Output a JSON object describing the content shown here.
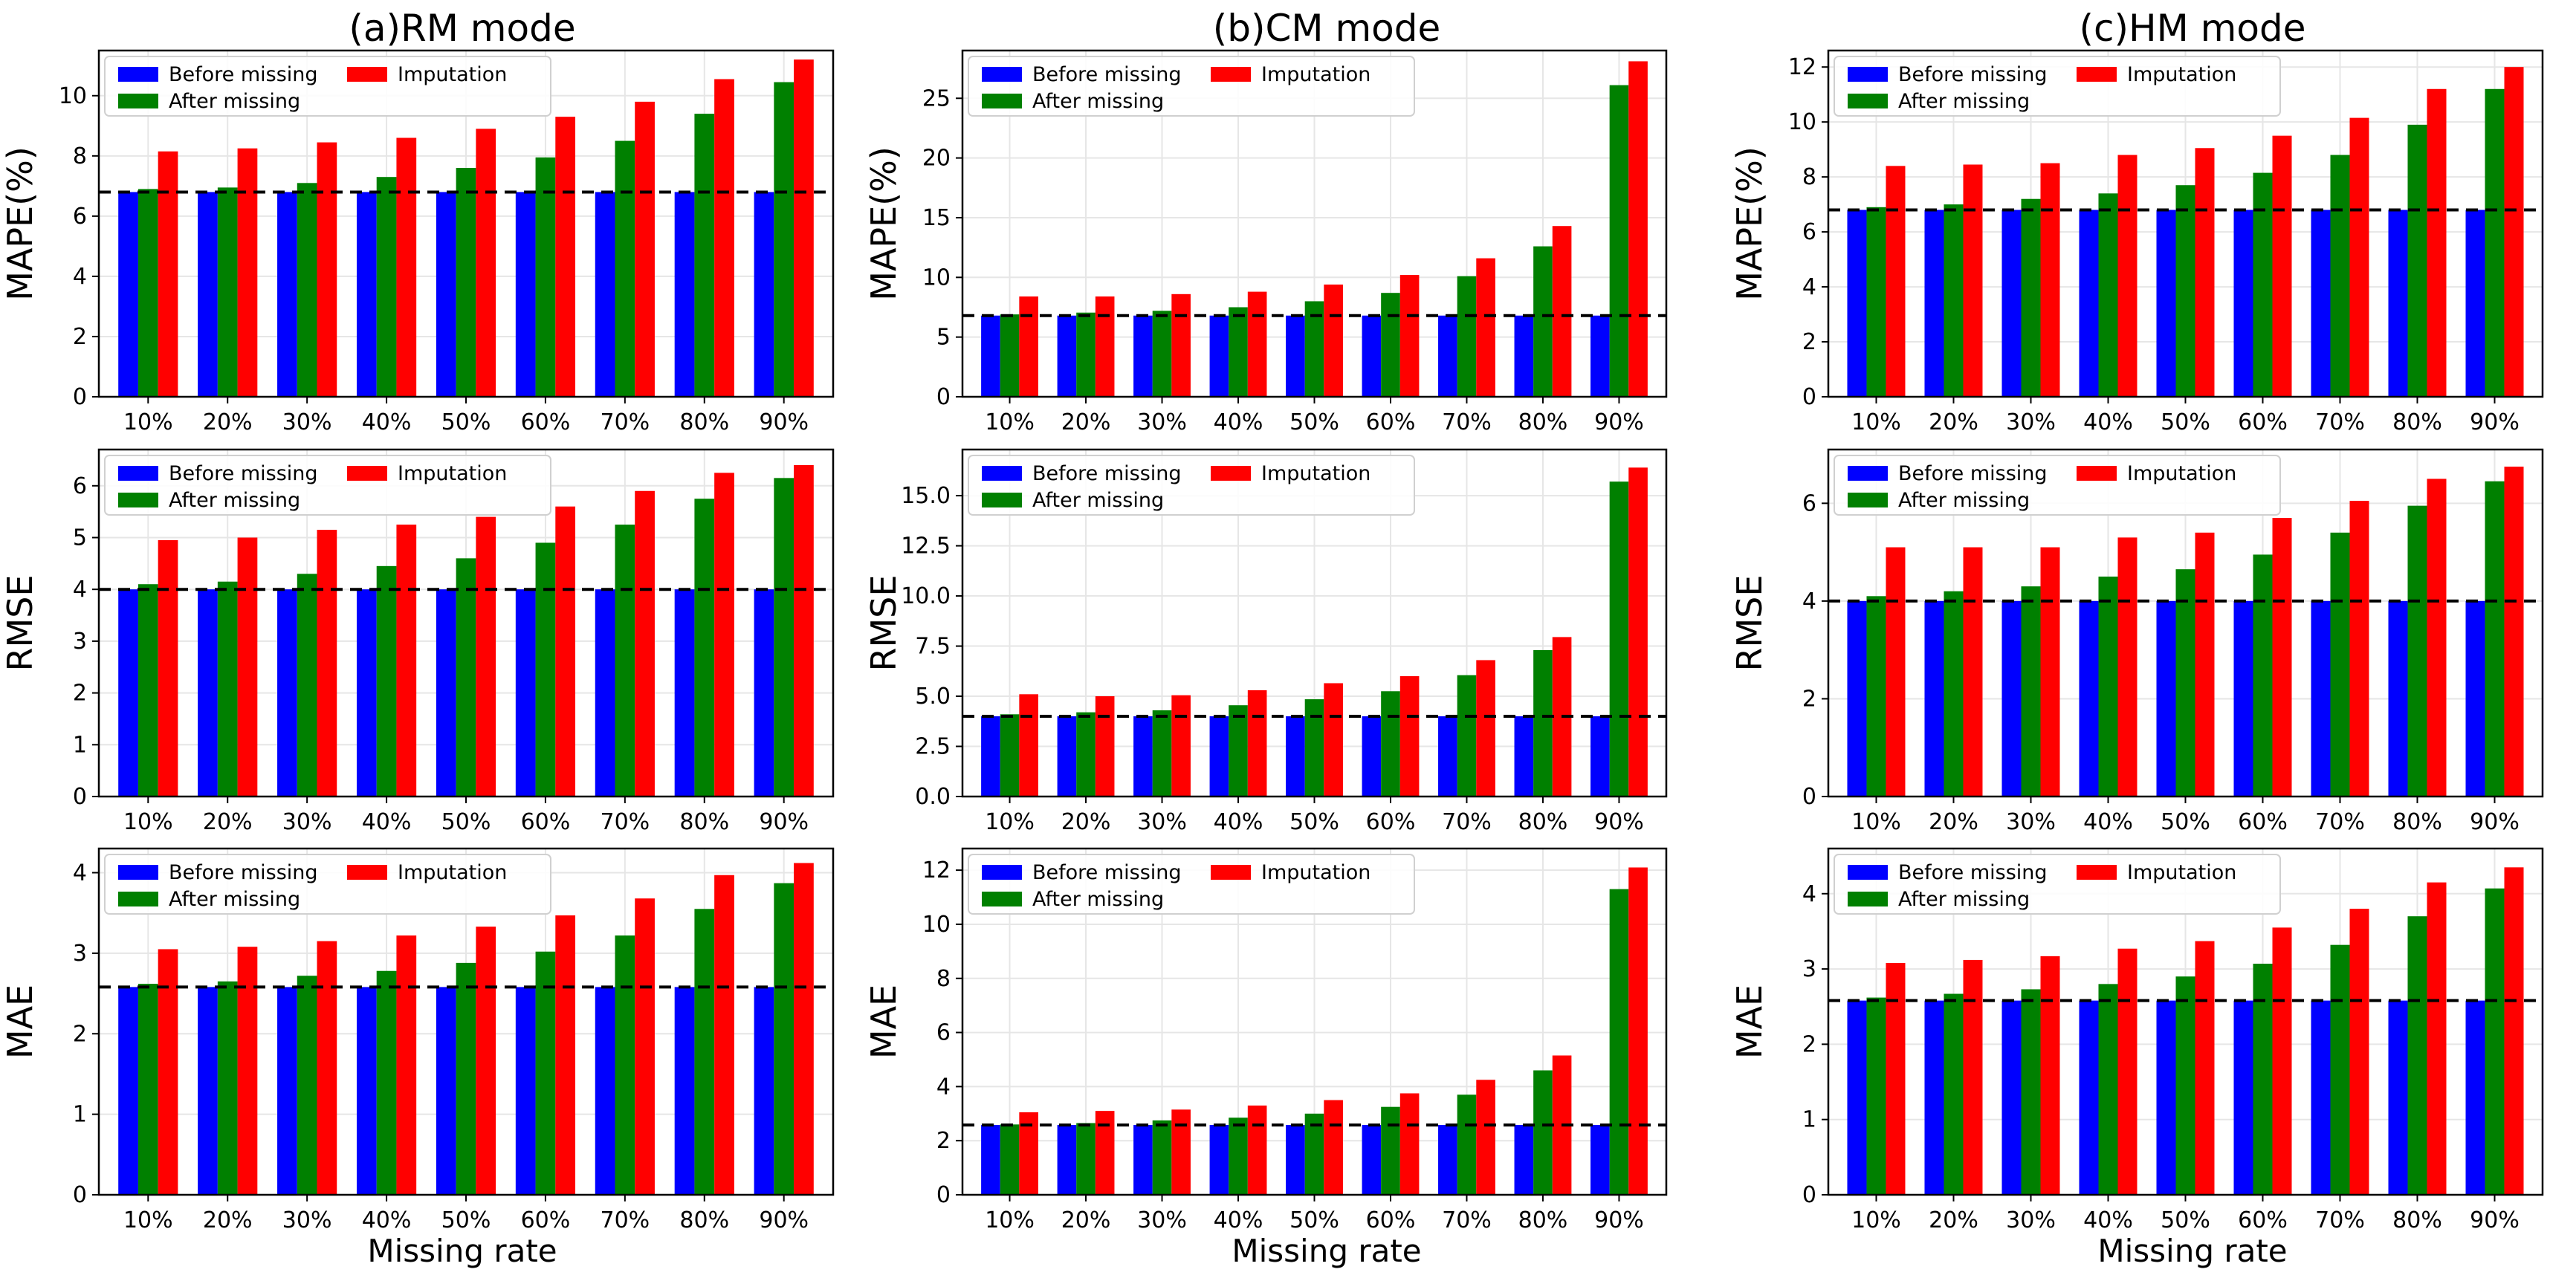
{
  "colors": {
    "before": "#0000ff",
    "after": "#008000",
    "imputation": "#ff0000",
    "baseline": "#000000",
    "grid": "#e6e6e6"
  },
  "legend": {
    "before": "Before missing",
    "after": "After missing",
    "imputation": "Imputation"
  },
  "column_titles": [
    "(a)RM mode",
    "(b)CM mode",
    "(c)HM mode"
  ],
  "x_axis_label": "Missing rate",
  "chart_data": [
    {
      "type": "bar",
      "mode": "RM",
      "metric": "MAPE",
      "ylabel": "MAPE(%)",
      "ylim": [
        0,
        11.5
      ],
      "yticks": [
        0,
        2,
        4,
        6,
        8,
        10
      ],
      "ytick_labels": [
        "0",
        "2",
        "4",
        "6",
        "8",
        "10"
      ],
      "categories": [
        "10%",
        "20%",
        "30%",
        "40%",
        "50%",
        "60%",
        "70%",
        "80%",
        "90%"
      ],
      "baseline": 6.8,
      "series": [
        {
          "name": "Before missing",
          "values": [
            6.8,
            6.8,
            6.8,
            6.8,
            6.8,
            6.8,
            6.8,
            6.8,
            6.8
          ]
        },
        {
          "name": "After missing",
          "values": [
            6.9,
            6.95,
            7.1,
            7.3,
            7.6,
            7.95,
            8.5,
            9.4,
            10.45
          ]
        },
        {
          "name": "Imputation",
          "values": [
            8.15,
            8.25,
            8.45,
            8.6,
            8.9,
            9.3,
            9.8,
            10.55,
            11.2
          ]
        }
      ]
    },
    {
      "type": "bar",
      "mode": "CM",
      "metric": "MAPE",
      "ylabel": "MAPE(%)",
      "ylim": [
        0,
        29
      ],
      "yticks": [
        0,
        5,
        10,
        15,
        20,
        25
      ],
      "ytick_labels": [
        "0",
        "5",
        "10",
        "15",
        "20",
        "25"
      ],
      "categories": [
        "10%",
        "20%",
        "30%",
        "40%",
        "50%",
        "60%",
        "70%",
        "80%",
        "90%"
      ],
      "baseline": 6.8,
      "series": [
        {
          "name": "Before missing",
          "values": [
            6.8,
            6.8,
            6.8,
            6.8,
            6.8,
            6.8,
            6.8,
            6.8,
            6.8
          ]
        },
        {
          "name": "After missing",
          "values": [
            6.9,
            7.05,
            7.2,
            7.5,
            8.0,
            8.7,
            10.1,
            12.6,
            26.1
          ]
        },
        {
          "name": "Imputation",
          "values": [
            8.4,
            8.4,
            8.6,
            8.8,
            9.4,
            10.2,
            11.6,
            14.3,
            28.1
          ]
        }
      ]
    },
    {
      "type": "bar",
      "mode": "HM",
      "metric": "MAPE",
      "ylabel": "MAPE(%)",
      "ylim": [
        0,
        12.6
      ],
      "yticks": [
        0,
        2,
        4,
        6,
        8,
        10,
        12
      ],
      "ytick_labels": [
        "0",
        "2",
        "4",
        "6",
        "8",
        "10",
        "12"
      ],
      "categories": [
        "10%",
        "20%",
        "30%",
        "40%",
        "50%",
        "60%",
        "70%",
        "80%",
        "90%"
      ],
      "baseline": 6.8,
      "series": [
        {
          "name": "Before missing",
          "values": [
            6.8,
            6.8,
            6.8,
            6.8,
            6.8,
            6.8,
            6.8,
            6.8,
            6.8
          ]
        },
        {
          "name": "After missing",
          "values": [
            6.9,
            7.0,
            7.2,
            7.4,
            7.7,
            8.15,
            8.8,
            9.9,
            11.2
          ]
        },
        {
          "name": "Imputation",
          "values": [
            8.4,
            8.45,
            8.5,
            8.8,
            9.05,
            9.5,
            10.15,
            11.2,
            12.0
          ]
        }
      ]
    },
    {
      "type": "bar",
      "mode": "RM",
      "metric": "RMSE",
      "ylabel": "RMSE",
      "ylim": [
        0,
        6.7
      ],
      "yticks": [
        0,
        1,
        2,
        3,
        4,
        5,
        6
      ],
      "ytick_labels": [
        "0",
        "1",
        "2",
        "3",
        "4",
        "5",
        "6"
      ],
      "categories": [
        "10%",
        "20%",
        "30%",
        "40%",
        "50%",
        "60%",
        "70%",
        "80%",
        "90%"
      ],
      "baseline": 4.0,
      "series": [
        {
          "name": "Before missing",
          "values": [
            4.0,
            4.0,
            4.0,
            4.0,
            4.0,
            4.0,
            4.0,
            4.0,
            4.0
          ]
        },
        {
          "name": "After missing",
          "values": [
            4.1,
            4.15,
            4.3,
            4.45,
            4.6,
            4.9,
            5.25,
            5.75,
            6.15
          ]
        },
        {
          "name": "Imputation",
          "values": [
            4.95,
            5.0,
            5.15,
            5.25,
            5.4,
            5.6,
            5.9,
            6.25,
            6.4
          ]
        }
      ]
    },
    {
      "type": "bar",
      "mode": "CM",
      "metric": "RMSE",
      "ylabel": "RMSE",
      "ylim": [
        0,
        17.3
      ],
      "yticks": [
        0,
        2.5,
        5,
        7.5,
        10,
        12.5,
        15
      ],
      "ytick_labels": [
        "0.0",
        "2.5",
        "5.0",
        "7.5",
        "10.0",
        "12.5",
        "15.0"
      ],
      "categories": [
        "10%",
        "20%",
        "30%",
        "40%",
        "50%",
        "60%",
        "70%",
        "80%",
        "90%"
      ],
      "baseline": 4.0,
      "series": [
        {
          "name": "Before missing",
          "values": [
            4.0,
            4.0,
            4.0,
            4.0,
            4.0,
            4.0,
            4.0,
            4.0,
            4.0
          ]
        },
        {
          "name": "After missing",
          "values": [
            4.1,
            4.2,
            4.3,
            4.55,
            4.85,
            5.25,
            6.05,
            7.3,
            15.7
          ]
        },
        {
          "name": "Imputation",
          "values": [
            5.1,
            5.0,
            5.05,
            5.3,
            5.65,
            6.0,
            6.8,
            7.95,
            16.4
          ]
        }
      ]
    },
    {
      "type": "bar",
      "mode": "HM",
      "metric": "RMSE",
      "ylabel": "RMSE",
      "ylim": [
        0,
        7.1
      ],
      "yticks": [
        0,
        2,
        4,
        6
      ],
      "ytick_labels": [
        "0",
        "2",
        "4",
        "6"
      ],
      "categories": [
        "10%",
        "20%",
        "30%",
        "40%",
        "50%",
        "60%",
        "70%",
        "80%",
        "90%"
      ],
      "baseline": 4.0,
      "series": [
        {
          "name": "Before missing",
          "values": [
            4.0,
            4.0,
            4.0,
            4.0,
            4.0,
            4.0,
            4.0,
            4.0,
            4.0
          ]
        },
        {
          "name": "After missing",
          "values": [
            4.1,
            4.2,
            4.3,
            4.5,
            4.65,
            4.95,
            5.4,
            5.95,
            6.45
          ]
        },
        {
          "name": "Imputation",
          "values": [
            5.1,
            5.1,
            5.1,
            5.3,
            5.4,
            5.7,
            6.05,
            6.5,
            6.75
          ]
        }
      ]
    },
    {
      "type": "bar",
      "mode": "RM",
      "metric": "MAE",
      "ylabel": "MAE",
      "ylim": [
        0,
        4.3
      ],
      "yticks": [
        0,
        1,
        2,
        3,
        4
      ],
      "ytick_labels": [
        "0",
        "1",
        "2",
        "3",
        "4"
      ],
      "categories": [
        "10%",
        "20%",
        "30%",
        "40%",
        "50%",
        "60%",
        "70%",
        "80%",
        "90%"
      ],
      "baseline": 2.58,
      "series": [
        {
          "name": "Before missing",
          "values": [
            2.58,
            2.58,
            2.58,
            2.58,
            2.58,
            2.58,
            2.58,
            2.58,
            2.58
          ]
        },
        {
          "name": "After missing",
          "values": [
            2.62,
            2.65,
            2.72,
            2.78,
            2.88,
            3.02,
            3.22,
            3.55,
            3.87
          ]
        },
        {
          "name": "Imputation",
          "values": [
            3.05,
            3.08,
            3.15,
            3.22,
            3.33,
            3.47,
            3.68,
            3.97,
            4.12
          ]
        }
      ]
    },
    {
      "type": "bar",
      "mode": "CM",
      "metric": "MAE",
      "ylabel": "MAE",
      "ylim": [
        0,
        12.8
      ],
      "yticks": [
        0,
        2,
        4,
        6,
        8,
        10,
        12
      ],
      "ytick_labels": [
        "0",
        "2",
        "4",
        "6",
        "8",
        "10",
        "12"
      ],
      "categories": [
        "10%",
        "20%",
        "30%",
        "40%",
        "50%",
        "60%",
        "70%",
        "80%",
        "90%"
      ],
      "baseline": 2.58,
      "series": [
        {
          "name": "Before missing",
          "values": [
            2.58,
            2.58,
            2.58,
            2.58,
            2.58,
            2.58,
            2.58,
            2.58,
            2.58
          ]
        },
        {
          "name": "After missing",
          "values": [
            2.6,
            2.65,
            2.75,
            2.85,
            3.0,
            3.25,
            3.7,
            4.6,
            11.3
          ]
        },
        {
          "name": "Imputation",
          "values": [
            3.05,
            3.1,
            3.15,
            3.3,
            3.5,
            3.75,
            4.25,
            5.15,
            12.1
          ]
        }
      ]
    },
    {
      "type": "bar",
      "mode": "HM",
      "metric": "MAE",
      "ylabel": "MAE",
      "ylim": [
        0,
        4.6
      ],
      "yticks": [
        0,
        1,
        2,
        3,
        4
      ],
      "ytick_labels": [
        "0",
        "1",
        "2",
        "3",
        "4"
      ],
      "categories": [
        "10%",
        "20%",
        "30%",
        "40%",
        "50%",
        "60%",
        "70%",
        "80%",
        "90%"
      ],
      "baseline": 2.58,
      "series": [
        {
          "name": "Before missing",
          "values": [
            2.58,
            2.58,
            2.58,
            2.58,
            2.58,
            2.58,
            2.58,
            2.58,
            2.58
          ]
        },
        {
          "name": "After missing",
          "values": [
            2.62,
            2.67,
            2.73,
            2.8,
            2.9,
            3.07,
            3.32,
            3.7,
            4.07
          ]
        },
        {
          "name": "Imputation",
          "values": [
            3.08,
            3.12,
            3.17,
            3.27,
            3.37,
            3.55,
            3.8,
            4.15,
            4.35
          ]
        }
      ]
    }
  ]
}
